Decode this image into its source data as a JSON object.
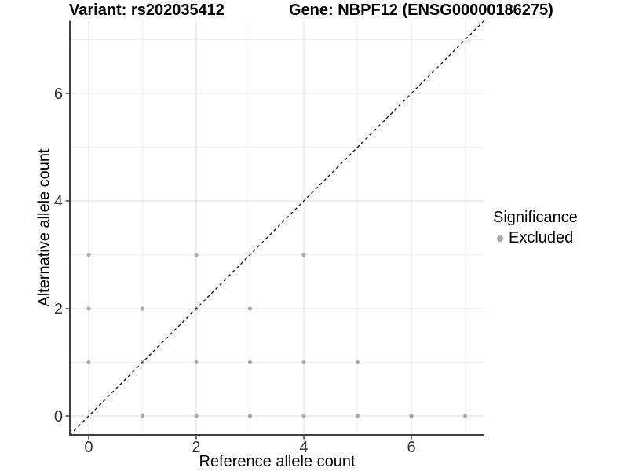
{
  "titles": {
    "variant": "Variant: rs202035412",
    "gene": "Gene: NBPF12 (ENSG00000186275)"
  },
  "legend": {
    "title": "Significance",
    "items": [
      {
        "label": "Excluded",
        "marker": "circle",
        "color": "#a9a9a9"
      }
    ]
  },
  "colors": {
    "background": "#ffffff",
    "point": "#a9a9a9",
    "grid_major": "#e3e3e3",
    "grid_minor": "#f0f0f0",
    "axis_line": "#404040",
    "tick_label": "#333333",
    "reference_line": "#000000",
    "text": "#000000"
  },
  "chart_data": {
    "type": "scatter",
    "title_left": "Variant: rs202035412",
    "title_right": "Gene: NBPF12 (ENSG00000186275)",
    "xlabel": "Reference allele count",
    "ylabel": "Alternative allele count",
    "xlim": [
      -0.35,
      7.35
    ],
    "ylim": [
      -0.35,
      7.35
    ],
    "x_ticks": [
      0,
      2,
      4,
      6
    ],
    "y_ticks": [
      0,
      2,
      4,
      6
    ],
    "x_minor_gridlines": [
      1,
      3,
      5,
      7
    ],
    "y_minor_gridlines": [
      1,
      3,
      5,
      7
    ],
    "grid": true,
    "legend_position": "right",
    "series": [
      {
        "name": "Excluded",
        "color": "#a9a9a9",
        "marker_radius": 2.6,
        "points": [
          [
            1,
            0
          ],
          [
            2,
            0
          ],
          [
            3,
            0
          ],
          [
            4,
            0
          ],
          [
            5,
            0
          ],
          [
            6,
            0
          ],
          [
            7,
            0
          ],
          [
            0,
            1
          ],
          [
            1,
            1
          ],
          [
            2,
            1
          ],
          [
            3,
            1
          ],
          [
            4,
            1
          ],
          [
            5,
            1
          ],
          [
            0,
            2
          ],
          [
            1,
            2
          ],
          [
            2,
            2
          ],
          [
            3,
            2
          ],
          [
            0,
            3
          ],
          [
            2,
            3
          ],
          [
            4,
            3
          ]
        ]
      }
    ],
    "reference_line": {
      "type": "identity",
      "style": "dashed",
      "from": [
        -0.35,
        -0.35
      ],
      "to": [
        7.35,
        7.35
      ]
    }
  }
}
